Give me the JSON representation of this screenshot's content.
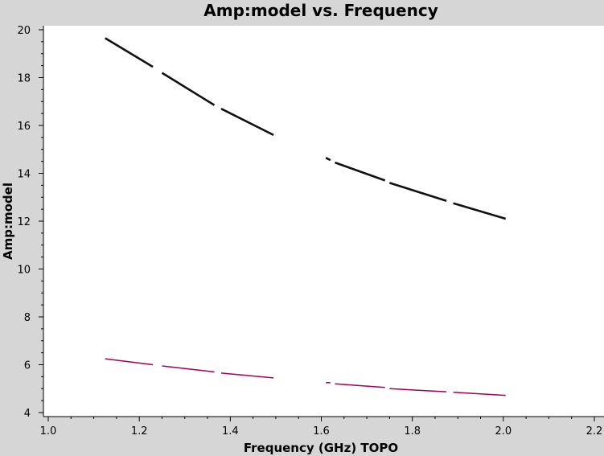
{
  "chart_data": {
    "type": "scatter",
    "title": "Amp:model vs. Frequency",
    "xlabel": "Frequency (GHz) TOPO",
    "ylabel": "Amp:model",
    "xlim": [
      1.0,
      2.2
    ],
    "ylim": [
      4,
      20
    ],
    "x_ticks": [
      "1.0",
      "1.2",
      "1.4",
      "1.6",
      "1.8",
      "2.0",
      "2.2"
    ],
    "y_ticks": [
      "4",
      "6",
      "8",
      "10",
      "12",
      "14",
      "16",
      "18",
      "20"
    ],
    "grid": false,
    "series": [
      {
        "color": "#111111",
        "segments": [
          [
            [
              1.125,
              19.65
            ],
            [
              1.23,
              18.45
            ]
          ],
          [
            [
              1.25,
              18.2
            ],
            [
              1.365,
              16.85
            ]
          ],
          [
            [
              1.38,
              16.7
            ],
            [
              1.495,
              15.6
            ]
          ],
          [
            [
              1.61,
              14.65
            ],
            [
              1.62,
              14.55
            ]
          ],
          [
            [
              1.63,
              14.45
            ],
            [
              1.74,
              13.7
            ]
          ],
          [
            [
              1.75,
              13.6
            ],
            [
              1.875,
              12.85
            ]
          ],
          [
            [
              1.89,
              12.75
            ],
            [
              2.005,
              12.1
            ]
          ]
        ]
      },
      {
        "color": "#a0005a",
        "segments": [
          [
            [
              1.125,
              6.25
            ],
            [
              1.23,
              6.0
            ]
          ],
          [
            [
              1.25,
              5.95
            ],
            [
              1.365,
              5.7
            ]
          ],
          [
            [
              1.38,
              5.65
            ],
            [
              1.495,
              5.45
            ]
          ],
          [
            [
              1.61,
              5.25
            ],
            [
              1.62,
              5.25
            ]
          ],
          [
            [
              1.63,
              5.2
            ],
            [
              1.74,
              5.05
            ]
          ],
          [
            [
              1.75,
              5.0
            ],
            [
              1.875,
              4.87
            ]
          ],
          [
            [
              1.89,
              4.85
            ],
            [
              2.005,
              4.72
            ]
          ]
        ]
      }
    ]
  }
}
